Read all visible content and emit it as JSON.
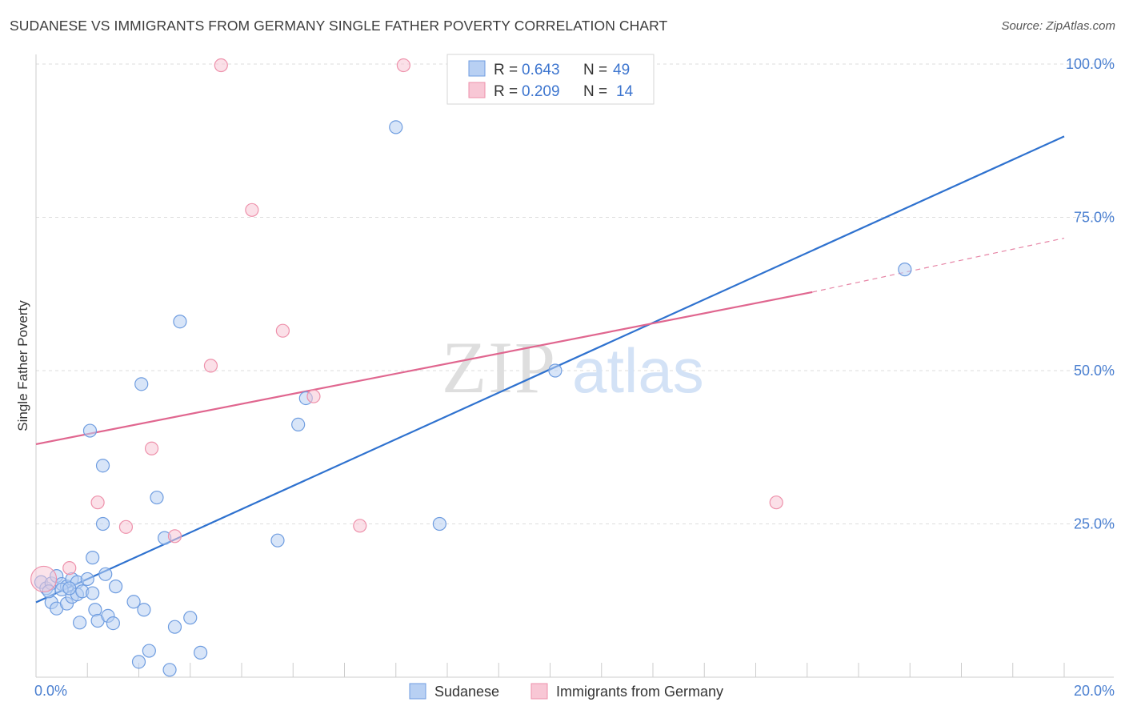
{
  "title": "SUDANESE VS IMMIGRANTS FROM GERMANY SINGLE FATHER POVERTY CORRELATION CHART",
  "source": "Source: ZipAtlas.com",
  "watermark": {
    "zip": "ZIP",
    "atlas": "atlas"
  },
  "colors": {
    "blue_fill": "#b8d0f3",
    "blue_stroke": "#6f9de0",
    "blue_line": "#2f72cf",
    "pink_fill": "#f8c7d5",
    "pink_stroke": "#ee91ab",
    "pink_line": "#e0668f",
    "tick_label": "#4a7fd0",
    "grid": "#dddddd"
  },
  "legend": {
    "rows": [
      {
        "r_label": "R =",
        "r_value": "0.643",
        "n_label": "N =",
        "n_value": "49",
        "series": "Sudanese"
      },
      {
        "r_label": "R =",
        "r_value": "0.209",
        "n_label": "N =",
        "n_value": "14",
        "series": "Immigrants from Germany"
      }
    ]
  },
  "bottom_legend": [
    "Sudanese",
    "Immigrants from Germany"
  ],
  "chart_data": {
    "type": "scatter",
    "title": "SUDANESE VS IMMIGRANTS FROM GERMANY SINGLE FATHER POVERTY CORRELATION CHART",
    "xlabel": "",
    "ylabel": "Single Father Poverty",
    "xlim": [
      0,
      20
    ],
    "ylim": [
      0,
      100
    ],
    "x_tick_labels": [
      {
        "value": 0,
        "label": "0.0%"
      },
      {
        "value": 20,
        "label": "20.0%"
      }
    ],
    "y_tick_labels": [
      {
        "value": 25,
        "label": "25.0%"
      },
      {
        "value": 50,
        "label": "50.0%"
      },
      {
        "value": 75,
        "label": "75.0%"
      },
      {
        "value": 100,
        "label": "100.0%"
      }
    ],
    "grid": true,
    "series": [
      {
        "name": "Sudanese",
        "color": "#6f9de0",
        "R": 0.643,
        "N": 49,
        "points": [
          [
            0.1,
            15.5
          ],
          [
            0.2,
            14.5
          ],
          [
            0.3,
            15.3
          ],
          [
            0.3,
            12.2
          ],
          [
            0.4,
            16.5
          ],
          [
            0.4,
            11.2
          ],
          [
            0.5,
            15.2
          ],
          [
            0.6,
            14.8
          ],
          [
            0.6,
            12.0
          ],
          [
            0.7,
            16.0
          ],
          [
            0.7,
            13.1
          ],
          [
            0.8,
            15.5
          ],
          [
            0.8,
            13.5
          ],
          [
            0.85,
            8.9
          ],
          [
            0.9,
            14.0
          ],
          [
            1.0,
            16.0
          ],
          [
            1.1,
            13.7
          ],
          [
            1.05,
            40.2
          ],
          [
            1.1,
            19.5
          ],
          [
            1.15,
            11.0
          ],
          [
            1.2,
            9.2
          ],
          [
            1.3,
            25.0
          ],
          [
            1.3,
            34.5
          ],
          [
            1.35,
            16.8
          ],
          [
            1.4,
            10.0
          ],
          [
            1.5,
            8.8
          ],
          [
            1.55,
            14.8
          ],
          [
            1.9,
            12.3
          ],
          [
            2.0,
            2.5
          ],
          [
            2.05,
            47.8
          ],
          [
            2.1,
            11.0
          ],
          [
            2.2,
            4.3
          ],
          [
            2.35,
            29.3
          ],
          [
            2.5,
            22.7
          ],
          [
            2.6,
            1.2
          ],
          [
            2.7,
            8.2
          ],
          [
            2.8,
            58.0
          ],
          [
            3.0,
            9.7
          ],
          [
            3.2,
            4.0
          ],
          [
            4.7,
            22.3
          ],
          [
            5.1,
            41.2
          ],
          [
            5.25,
            45.5
          ],
          [
            7.0,
            89.7
          ],
          [
            7.85,
            25.0
          ],
          [
            10.1,
            50.0
          ],
          [
            16.9,
            66.5
          ],
          [
            0.25,
            14.0
          ],
          [
            0.5,
            14.3
          ],
          [
            0.65,
            14.5
          ]
        ],
        "trend": {
          "x0": 0,
          "y0": 12.2,
          "x1": 20,
          "y1": 88.2
        }
      },
      {
        "name": "Immigrants from Germany",
        "color": "#ee91ab",
        "R": 0.209,
        "N": 14,
        "points": [
          [
            0.15,
            16.0
          ],
          [
            0.65,
            17.8
          ],
          [
            1.2,
            28.5
          ],
          [
            1.75,
            24.5
          ],
          [
            2.25,
            37.3
          ],
          [
            2.7,
            23.0
          ],
          [
            3.4,
            50.8
          ],
          [
            3.6,
            99.8
          ],
          [
            4.2,
            76.2
          ],
          [
            4.8,
            56.5
          ],
          [
            5.4,
            45.8
          ],
          [
            6.3,
            24.7
          ],
          [
            7.15,
            99.8
          ],
          [
            14.4,
            28.5
          ]
        ],
        "trend": {
          "x0": 0,
          "y0": 38.0,
          "x1": 15.1,
          "y1": 62.8
        },
        "trend_extension": {
          "x0": 15.1,
          "y0": 62.8,
          "x1": 20,
          "y1": 71.6
        }
      }
    ]
  }
}
